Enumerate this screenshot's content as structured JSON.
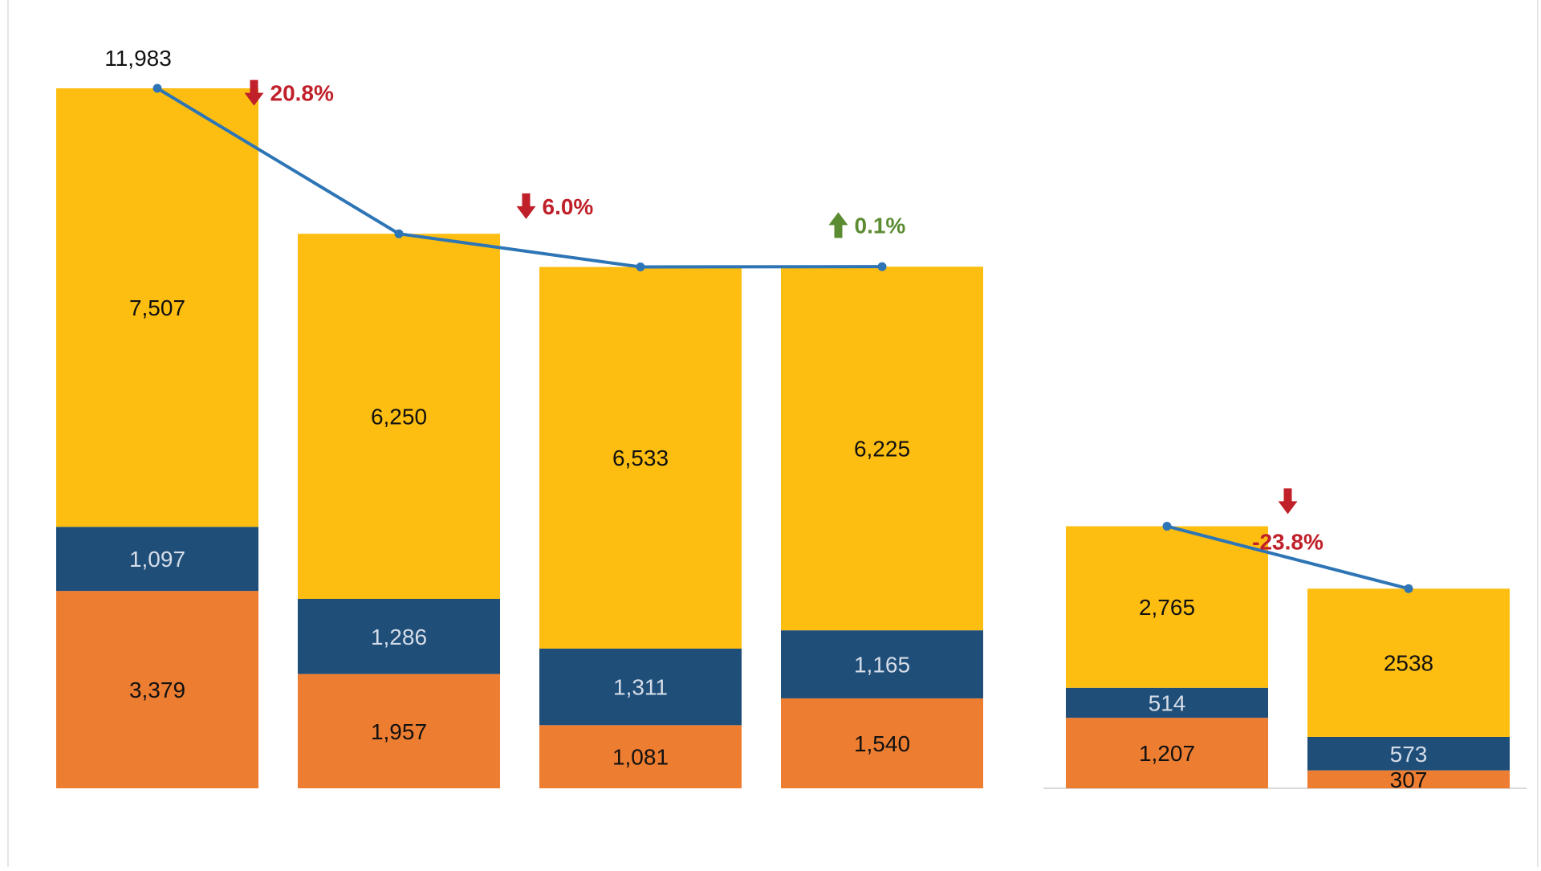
{
  "colors": {
    "top": "#FDBE11",
    "mid": "#1F4E79",
    "bottom": "#ED7D31",
    "line": "#2E75B6",
    "down": "#C0202A",
    "up": "#5B8C32",
    "axis": "#D9D9D9"
  },
  "chart_data": {
    "type": "bar",
    "stacked": true,
    "groups": [
      {
        "bars": [
          0,
          1,
          2,
          3
        ]
      },
      {
        "bars": [
          4,
          5
        ]
      }
    ],
    "series": [
      {
        "values": [
          3379,
          1957,
          1081,
          1540,
          1207,
          307
        ],
        "labels": [
          "3,379",
          "1,957",
          "1,081",
          "1,540",
          "1,207",
          "307"
        ]
      },
      {
        "values": [
          1097,
          1286,
          1311,
          1165,
          514,
          573
        ],
        "labels": [
          "1,097",
          "1,286",
          "1,311",
          "1,165",
          "514",
          "573"
        ]
      },
      {
        "values": [
          7507,
          6250,
          6533,
          6225,
          2765,
          2538
        ],
        "labels": [
          "7,507",
          "6,250",
          "6,533",
          "6,225",
          "2,765",
          "2538"
        ]
      }
    ],
    "totals": [
      11983,
      9493,
      8925,
      8930,
      4486,
      3418
    ],
    "total_labels": [
      {
        "bar": 0,
        "text": "11,983"
      }
    ],
    "trend_lines": [
      {
        "bars": [
          0,
          1,
          2,
          3
        ]
      },
      {
        "bars": [
          4,
          5
        ]
      }
    ],
    "annotations": [
      {
        "between": [
          0,
          1
        ],
        "text": "20.8%",
        "direction": "down"
      },
      {
        "between": [
          1,
          2
        ],
        "text": "6.0%",
        "direction": "down"
      },
      {
        "between": [
          2,
          3
        ],
        "text": "0.1%",
        "direction": "up"
      },
      {
        "between": [
          4,
          5
        ],
        "text": "-23.8%",
        "direction": "down"
      }
    ],
    "ylim": [
      0,
      11983
    ],
    "grid": false,
    "legend": "none"
  }
}
